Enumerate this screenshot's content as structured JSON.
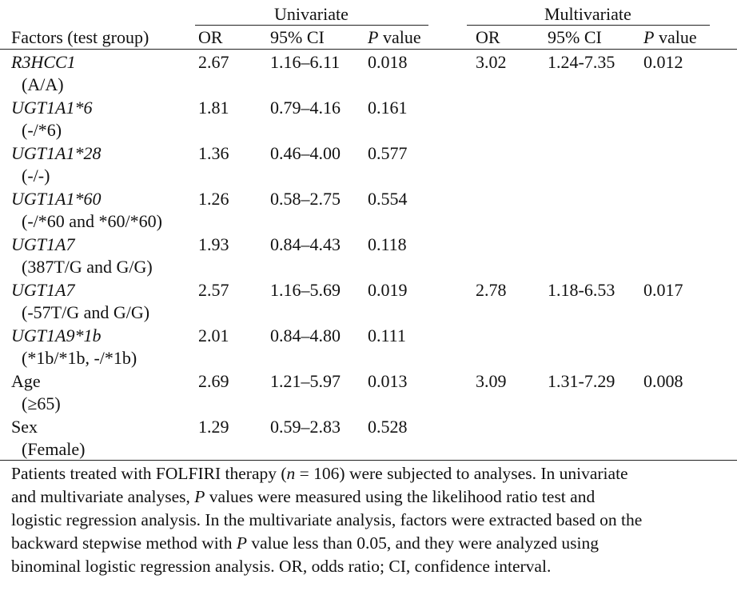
{
  "headers": {
    "group_univariate": "Univariate",
    "group_multivariate": "Multivariate",
    "factors": "Factors (test group)",
    "or": "OR",
    "ci": "95% CI",
    "p_italic": "P",
    "p_rest": " value"
  },
  "rows": [
    {
      "factor": "R3HCC1",
      "italic": true,
      "sub": "(A/A)",
      "u_or": "2.67",
      "u_ci": "1.16–6.11",
      "u_p": "0.018",
      "m_or": "3.02",
      "m_ci": "1.24-7.35",
      "m_p": "0.012"
    },
    {
      "factor": "UGT1A1*6",
      "italic": true,
      "sub": "(-/*6)",
      "u_or": "1.81",
      "u_ci": "0.79–4.16",
      "u_p": "0.161",
      "m_or": "",
      "m_ci": "",
      "m_p": ""
    },
    {
      "factor": "UGT1A1*28",
      "italic": true,
      "sub": "(-/-)",
      "u_or": "1.36",
      "u_ci": "0.46–4.00",
      "u_p": "0.577",
      "m_or": "",
      "m_ci": "",
      "m_p": ""
    },
    {
      "factor": "UGT1A1*60",
      "italic": true,
      "sub": "(-/*60 and *60/*60)",
      "u_or": "1.26",
      "u_ci": "0.58–2.75",
      "u_p": "0.554",
      "m_or": "",
      "m_ci": "",
      "m_p": ""
    },
    {
      "factor": "UGT1A7",
      "italic": true,
      "sub": "(387T/G and G/G)",
      "u_or": "1.93",
      "u_ci": "0.84–4.43",
      "u_p": "0.118",
      "m_or": "",
      "m_ci": "",
      "m_p": ""
    },
    {
      "factor": "UGT1A7",
      "italic": true,
      "sub": "(-57T/G and G/G)",
      "u_or": "2.57",
      "u_ci": "1.16–5.69",
      "u_p": "0.019",
      "m_or": "2.78",
      "m_ci": "1.18-6.53",
      "m_p": "0.017"
    },
    {
      "factor": "UGT1A9*1b",
      "italic": true,
      "sub": "(*1b/*1b, -/*1b)",
      "u_or": "2.01",
      "u_ci": "0.84–4.80",
      "u_p": "0.111",
      "m_or": "",
      "m_ci": "",
      "m_p": ""
    },
    {
      "factor": "Age",
      "italic": false,
      "sub": "(≥65)",
      "u_or": "2.69",
      "u_ci": "1.21–5.97",
      "u_p": "0.013",
      "m_or": "3.09",
      "m_ci": "1.31-7.29",
      "m_p": "0.008"
    },
    {
      "factor": "Sex",
      "italic": false,
      "sub": "(Female)",
      "u_or": "1.29",
      "u_ci": "0.59–2.83",
      "u_p": "0.528",
      "m_or": "",
      "m_ci": "",
      "m_p": ""
    }
  ],
  "footnote": [
    [
      {
        "t": "Patients treated with FOLFIRI therapy ("
      },
      {
        "t": "n",
        "i": true
      },
      {
        "t": " = 106) were subjected to analyses. In univariate"
      }
    ],
    [
      {
        "t": "and multivariate analyses, "
      },
      {
        "t": "P",
        "i": true
      },
      {
        "t": " values were measured using the likelihood ratio test and"
      }
    ],
    [
      {
        "t": "logistic regression analysis. In the multivariate analysis, factors were extracted based on the"
      }
    ],
    [
      {
        "t": "backward stepwise method with "
      },
      {
        "t": "P",
        "i": true
      },
      {
        "t": " value less than 0.05, and they were analyzed using"
      }
    ],
    [
      {
        "t": "binominal logistic regression analysis. OR, odds ratio; CI, confidence interval."
      }
    ]
  ]
}
